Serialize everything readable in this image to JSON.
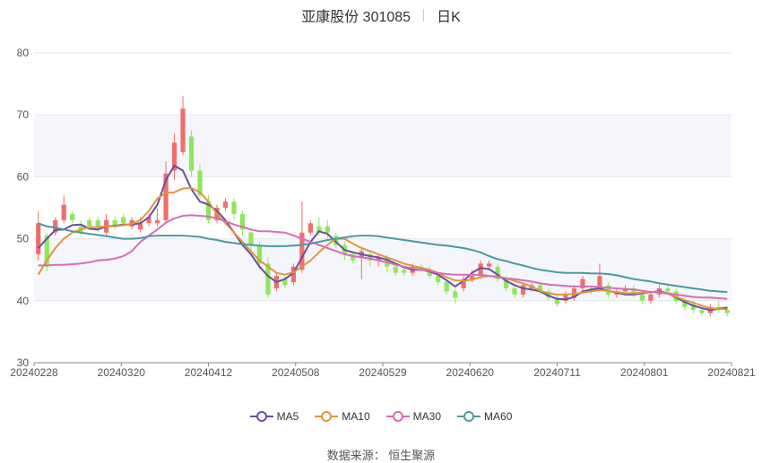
{
  "header": {
    "title": "亚康股份 301085",
    "period": "日K"
  },
  "source": "数据来源： 恒生聚源",
  "chart_data": {
    "type": "candlestick",
    "yticks": [
      30,
      40,
      50,
      60,
      70,
      80
    ],
    "ylim": [
      30,
      80
    ],
    "xticks": [
      "20240228",
      "20240320",
      "20240412",
      "20240508",
      "20240529",
      "20240620",
      "20240711",
      "20240801",
      "20240821"
    ],
    "colors": {
      "up": "#ef6f6c",
      "down": "#8ee85a",
      "MA5": "#6a4ea1",
      "MA10": "#e0953f",
      "MA30": "#d96cb5",
      "MA60": "#4a9a9e"
    },
    "series": [
      {
        "name": "MA5",
        "values": [
          48.5,
          50,
          51.4,
          51.5,
          52.2,
          52.3,
          51.6,
          51.5,
          52,
          52.1,
          52.3,
          52.3,
          52.5,
          53.5,
          55.5,
          59.5,
          61.8,
          61,
          58,
          56,
          55.5,
          54.5,
          53,
          51,
          49,
          47.5,
          45.5,
          44,
          43,
          43.5,
          44.5,
          47,
          49.5,
          51.2,
          50.8,
          49.5,
          48.2,
          47.8,
          47.5,
          47.2,
          47,
          46.6,
          46,
          45.4,
          45,
          45,
          44.7,
          44.2,
          43.3,
          42.3,
          43.2,
          44.5,
          45.3,
          45.1,
          44.2,
          43.2,
          42.5,
          42,
          41.8,
          41.5,
          40.8,
          40.3,
          40.2,
          40.6,
          41.5,
          41.8,
          42,
          41.6,
          41.3,
          41,
          41,
          41.2,
          41.4,
          41.5,
          41.2,
          40.5,
          39.8,
          39.2,
          38.8,
          38.5,
          38.7,
          38.9
        ]
      },
      {
        "name": "MA10",
        "values": [
          44.2,
          46.5,
          48.5,
          50,
          51,
          51.5,
          51.8,
          51.9,
          52,
          52,
          52.2,
          52.4,
          53,
          54.5,
          56.5,
          57.4,
          57.5,
          58.1,
          58.2,
          57.5,
          56,
          54,
          52.5,
          51,
          49.5,
          48,
          46.5,
          45.5,
          44.5,
          44.2,
          44.6,
          45.5,
          46.5,
          47.8,
          49,
          50,
          50,
          49.2,
          48.5,
          48,
          47.5,
          47,
          46.5,
          46,
          45.6,
          45.3,
          45,
          44.5,
          43.8,
          43.3,
          43.2,
          43.4,
          43.8,
          44,
          43.9,
          43.6,
          43.2,
          42.8,
          42.3,
          41.6,
          41.2,
          41,
          41,
          41.1,
          41.3,
          41.5,
          41.7,
          41.6,
          41.4,
          41.2,
          41.2,
          41.3,
          41.4,
          41.4,
          41.1,
          40.6,
          40.1,
          39.7,
          39.2,
          38.8,
          38.7,
          38.6
        ]
      },
      {
        "name": "MA30",
        "values": [
          45.7,
          45.7,
          45.8,
          45.8,
          45.9,
          46,
          46.2,
          46.5,
          46.6,
          46.8,
          47.2,
          48,
          49.5,
          50.5,
          51.5,
          52.6,
          53.3,
          53.7,
          53.8,
          53.7,
          53.6,
          53.3,
          52.8,
          52.3,
          51.9,
          51.5,
          51.2,
          51.2,
          51.1,
          51,
          50.5,
          50,
          49.5,
          49,
          48.5,
          48,
          47.5,
          47.2,
          47,
          46.8,
          46.5,
          46.2,
          45.8,
          45.5,
          45.2,
          45,
          44.8,
          44.5,
          44.3,
          44.2,
          44.2,
          44.2,
          44.2,
          44,
          43.8,
          43.6,
          43.5,
          43.3,
          43.1,
          42.8,
          42.6,
          42.5,
          42.4,
          42.3,
          42.3,
          42.3,
          42.2,
          42.1,
          42,
          41.9,
          41.8,
          41.6,
          41.4,
          41.3,
          41.2,
          41,
          40.8,
          40.6,
          40.5,
          40.5,
          40.4,
          40.3
        ]
      },
      {
        "name": "MA60",
        "values": [
          52.5,
          52,
          51.8,
          51.5,
          51.2,
          51,
          50.8,
          50.6,
          50.4,
          50.2,
          50,
          50,
          50.1,
          50.4,
          50.5,
          50.5,
          50.5,
          50.5,
          50.4,
          50.3,
          50,
          49.8,
          49.5,
          49.3,
          49.1,
          49,
          48.9,
          48.8,
          48.8,
          48.8,
          48.9,
          49,
          49.2,
          49.5,
          49.8,
          50,
          50.2,
          50.4,
          50.5,
          50.5,
          50.4,
          50.2,
          50,
          49.8,
          49.6,
          49.4,
          49.2,
          49,
          48.9,
          48.7,
          48.5,
          48.2,
          47.8,
          47.2,
          46.7,
          46.4,
          46,
          45.7,
          45.3,
          45,
          44.8,
          44.6,
          44.5,
          44.5,
          44.5,
          44.4,
          44.4,
          44.3,
          44.1,
          43.8,
          43.5,
          43.3,
          43.1,
          42.8,
          42.6,
          42.4,
          42.2,
          42,
          41.8,
          41.6,
          41.5,
          41.4
        ]
      }
    ],
    "candles": [
      {
        "o": 47.5,
        "c": 52.5,
        "h": 54.5,
        "l": 46.5
      },
      {
        "o": 50.5,
        "c": 45.5,
        "h": 51,
        "l": 44.8
      },
      {
        "o": 51,
        "c": 53,
        "h": 53.5,
        "l": 50.5
      },
      {
        "o": 53,
        "c": 55.5,
        "h": 57,
        "l": 52.5
      },
      {
        "o": 54,
        "c": 53,
        "h": 54.5,
        "l": 52.5
      },
      {
        "o": 52,
        "c": 51,
        "h": 53,
        "l": 50.5
      },
      {
        "o": 53,
        "c": 52,
        "h": 53.5,
        "l": 51.5
      },
      {
        "o": 53,
        "c": 52,
        "h": 53.5,
        "l": 51
      },
      {
        "o": 51,
        "c": 53,
        "h": 54,
        "l": 50.5
      },
      {
        "o": 53,
        "c": 52,
        "h": 53.5,
        "l": 51.5
      },
      {
        "o": 53.5,
        "c": 52.5,
        "h": 54,
        "l": 52
      },
      {
        "o": 52,
        "c": 53,
        "h": 53.5,
        "l": 51.5
      },
      {
        "o": 51.5,
        "c": 52.5,
        "h": 53.5,
        "l": 51
      },
      {
        "o": 52.5,
        "c": 53.5,
        "h": 54,
        "l": 52
      },
      {
        "o": 52.5,
        "c": 53,
        "h": 55,
        "l": 52
      },
      {
        "o": 53,
        "c": 60.5,
        "h": 62.5,
        "l": 52.5
      },
      {
        "o": 61,
        "c": 65.5,
        "h": 67,
        "l": 59.5
      },
      {
        "o": 64,
        "c": 71,
        "h": 73,
        "l": 63.5
      },
      {
        "o": 66.5,
        "c": 61,
        "h": 67.5,
        "l": 60
      },
      {
        "o": 61,
        "c": 57,
        "h": 62,
        "l": 56.5
      },
      {
        "o": 56,
        "c": 53,
        "h": 57,
        "l": 52.5
      },
      {
        "o": 53,
        "c": 55,
        "h": 55.5,
        "l": 52.5
      },
      {
        "o": 55,
        "c": 56,
        "h": 56.5,
        "l": 54.5
      },
      {
        "o": 56,
        "c": 54,
        "h": 56.5,
        "l": 53
      },
      {
        "o": 54,
        "c": 51.5,
        "h": 54.5,
        "l": 50.5
      },
      {
        "o": 51,
        "c": 49,
        "h": 51.5,
        "l": 48
      },
      {
        "o": 49,
        "c": 46,
        "h": 49.5,
        "l": 45
      },
      {
        "o": 46,
        "c": 41,
        "h": 47,
        "l": 40.5
      },
      {
        "o": 42,
        "c": 44,
        "h": 44.5,
        "l": 41.5
      },
      {
        "o": 43.5,
        "c": 42.5,
        "h": 44,
        "l": 42
      },
      {
        "o": 43,
        "c": 45.5,
        "h": 46,
        "l": 42.5
      },
      {
        "o": 45,
        "c": 51,
        "h": 56,
        "l": 44.5
      },
      {
        "o": 51,
        "c": 52.5,
        "h": 53,
        "l": 50.5
      },
      {
        "o": 52,
        "c": 51,
        "h": 53.5,
        "l": 50.5
      },
      {
        "o": 52,
        "c": 51,
        "h": 53,
        "l": 50
      },
      {
        "o": 50.5,
        "c": 49,
        "h": 51,
        "l": 48.5
      },
      {
        "o": 49,
        "c": 47.5,
        "h": 49.5,
        "l": 46.5
      },
      {
        "o": 47.5,
        "c": 46.5,
        "h": 48,
        "l": 46
      },
      {
        "o": 47,
        "c": 48,
        "h": 48.5,
        "l": 43.5
      },
      {
        "o": 47.5,
        "c": 46.5,
        "h": 48,
        "l": 45.5
      },
      {
        "o": 46.5,
        "c": 47,
        "h": 47.5,
        "l": 45.5
      },
      {
        "o": 47,
        "c": 45.5,
        "h": 47.5,
        "l": 44.5
      },
      {
        "o": 45.5,
        "c": 44.5,
        "h": 46,
        "l": 44
      },
      {
        "o": 45,
        "c": 44.5,
        "h": 45.5,
        "l": 44
      },
      {
        "o": 44.5,
        "c": 45.5,
        "h": 46,
        "l": 44
      },
      {
        "o": 45.5,
        "c": 45,
        "h": 46,
        "l": 44.5
      },
      {
        "o": 45,
        "c": 44,
        "h": 45.5,
        "l": 43.5
      },
      {
        "o": 44,
        "c": 43,
        "h": 44.5,
        "l": 42.5
      },
      {
        "o": 43,
        "c": 41.5,
        "h": 43.5,
        "l": 41
      },
      {
        "o": 41.5,
        "c": 40.5,
        "h": 42,
        "l": 39.5
      },
      {
        "o": 42,
        "c": 43.5,
        "h": 44,
        "l": 41.5
      },
      {
        "o": 43.5,
        "c": 44,
        "h": 45,
        "l": 43
      },
      {
        "o": 44,
        "c": 46,
        "h": 46.5,
        "l": 43.5
      },
      {
        "o": 45.5,
        "c": 46,
        "h": 46.5,
        "l": 45
      },
      {
        "o": 45.5,
        "c": 43.5,
        "h": 46,
        "l": 43
      },
      {
        "o": 43.5,
        "c": 42,
        "h": 44,
        "l": 41.5
      },
      {
        "o": 42,
        "c": 41,
        "h": 42.5,
        "l": 40.5
      },
      {
        "o": 41,
        "c": 42.5,
        "h": 43,
        "l": 40.5
      },
      {
        "o": 42,
        "c": 42.5,
        "h": 43,
        "l": 41.5
      },
      {
        "o": 42.5,
        "c": 41.5,
        "h": 43,
        "l": 41
      },
      {
        "o": 41.5,
        "c": 40.5,
        "h": 42,
        "l": 40
      },
      {
        "o": 40.5,
        "c": 39.5,
        "h": 41,
        "l": 39
      },
      {
        "o": 40,
        "c": 41,
        "h": 41.5,
        "l": 39.5
      },
      {
        "o": 40.5,
        "c": 42,
        "h": 42.5,
        "l": 40
      },
      {
        "o": 42,
        "c": 43.5,
        "h": 44,
        "l": 41.5
      },
      {
        "o": 42,
        "c": 41.5,
        "h": 42.5,
        "l": 41
      },
      {
        "o": 42,
        "c": 44,
        "h": 46,
        "l": 41.5
      },
      {
        "o": 42.5,
        "c": 41,
        "h": 43,
        "l": 40.5
      },
      {
        "o": 41,
        "c": 41.5,
        "h": 42,
        "l": 40.5
      },
      {
        "o": 41.5,
        "c": 42,
        "h": 42.5,
        "l": 41
      },
      {
        "o": 42,
        "c": 41,
        "h": 42.5,
        "l": 40.5
      },
      {
        "o": 41,
        "c": 40,
        "h": 41.5,
        "l": 39.5
      },
      {
        "o": 40,
        "c": 41,
        "h": 41.5,
        "l": 39.5
      },
      {
        "o": 41,
        "c": 42,
        "h": 42.5,
        "l": 40.5
      },
      {
        "o": 42,
        "c": 41.5,
        "h": 42.5,
        "l": 41
      },
      {
        "o": 41.5,
        "c": 40,
        "h": 42,
        "l": 39.5
      },
      {
        "o": 40,
        "c": 39,
        "h": 40.5,
        "l": 38.5
      },
      {
        "o": 39.5,
        "c": 38.5,
        "h": 40,
        "l": 38
      },
      {
        "o": 38.5,
        "c": 38,
        "h": 39,
        "l": 37.5
      },
      {
        "o": 38,
        "c": 39,
        "h": 39.5,
        "l": 37.5
      },
      {
        "o": 39,
        "c": 38.5,
        "h": 40,
        "l": 38
      },
      {
        "o": 38.5,
        "c": 38,
        "h": 39,
        "l": 37.5
      }
    ]
  }
}
